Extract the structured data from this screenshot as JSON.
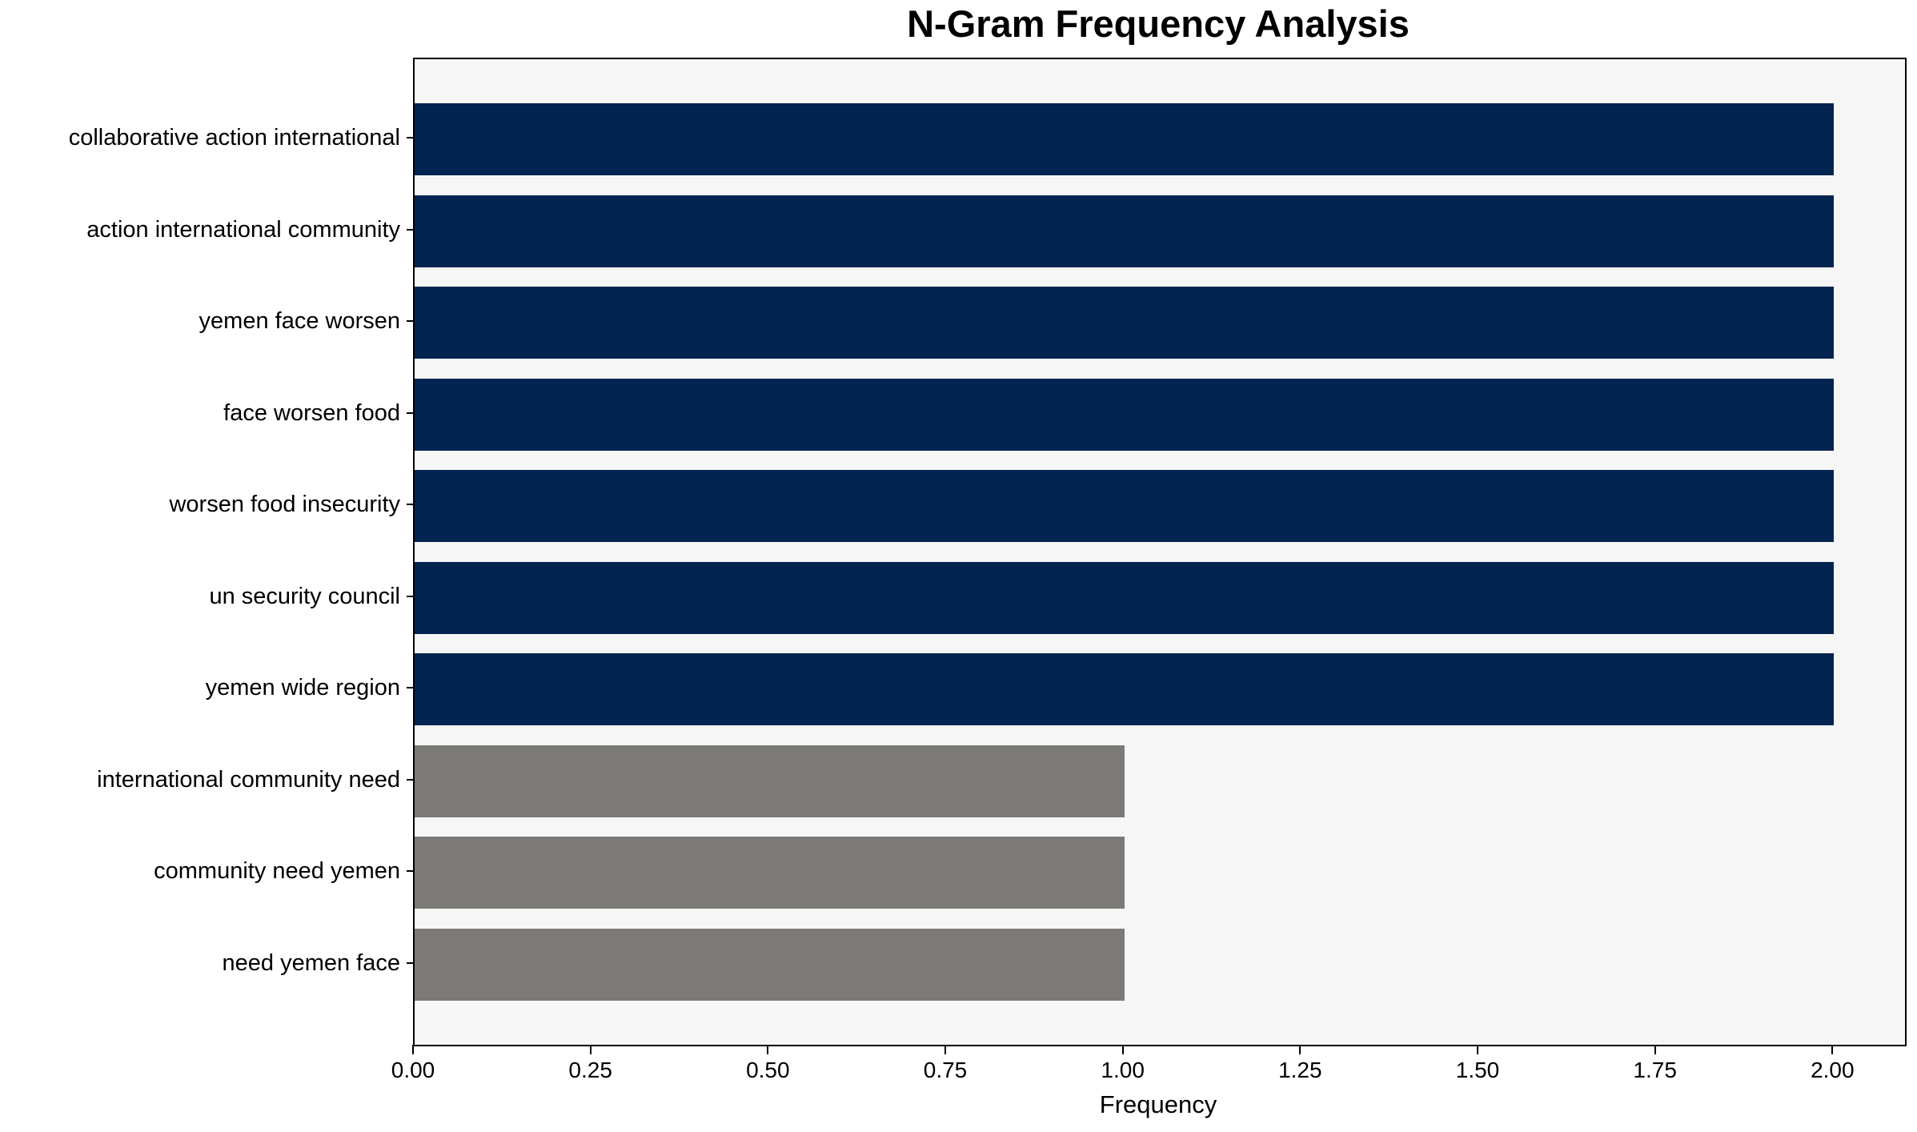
{
  "chart_data": {
    "type": "bar",
    "orientation": "horizontal",
    "title": "N-Gram Frequency Analysis",
    "xlabel": "Frequency",
    "ylabel": "",
    "categories": [
      "collaborative action international",
      "action international community",
      "yemen face worsen",
      "face worsen food",
      "worsen food insecurity",
      "un security council",
      "yemen wide region",
      "international community need",
      "community need yemen",
      "need yemen face"
    ],
    "values": [
      2,
      2,
      2,
      2,
      2,
      2,
      2,
      1,
      1,
      1
    ],
    "bar_colors": [
      "#032450",
      "#032450",
      "#032450",
      "#032450",
      "#032450",
      "#032450",
      "#032450",
      "#7b7a77",
      "#7b7a77",
      "#7b7a77"
    ],
    "xlim": [
      0,
      2.1
    ],
    "xticks": [
      0,
      0.25,
      0.5,
      0.75,
      1.0,
      1.25,
      1.5,
      1.75,
      2.0
    ],
    "xtick_labels": [
      "0.00",
      "0.25",
      "0.50",
      "0.75",
      "1.00",
      "1.25",
      "1.50",
      "1.75",
      "2.00"
    ],
    "grid": false,
    "legend": null,
    "colors": {
      "high_frequency_bar": "#032450",
      "low_frequency_bar": "#7b7a77",
      "plot_background": "#f6f6f6",
      "figure_background": "#ffffff",
      "text": "#000000"
    }
  }
}
